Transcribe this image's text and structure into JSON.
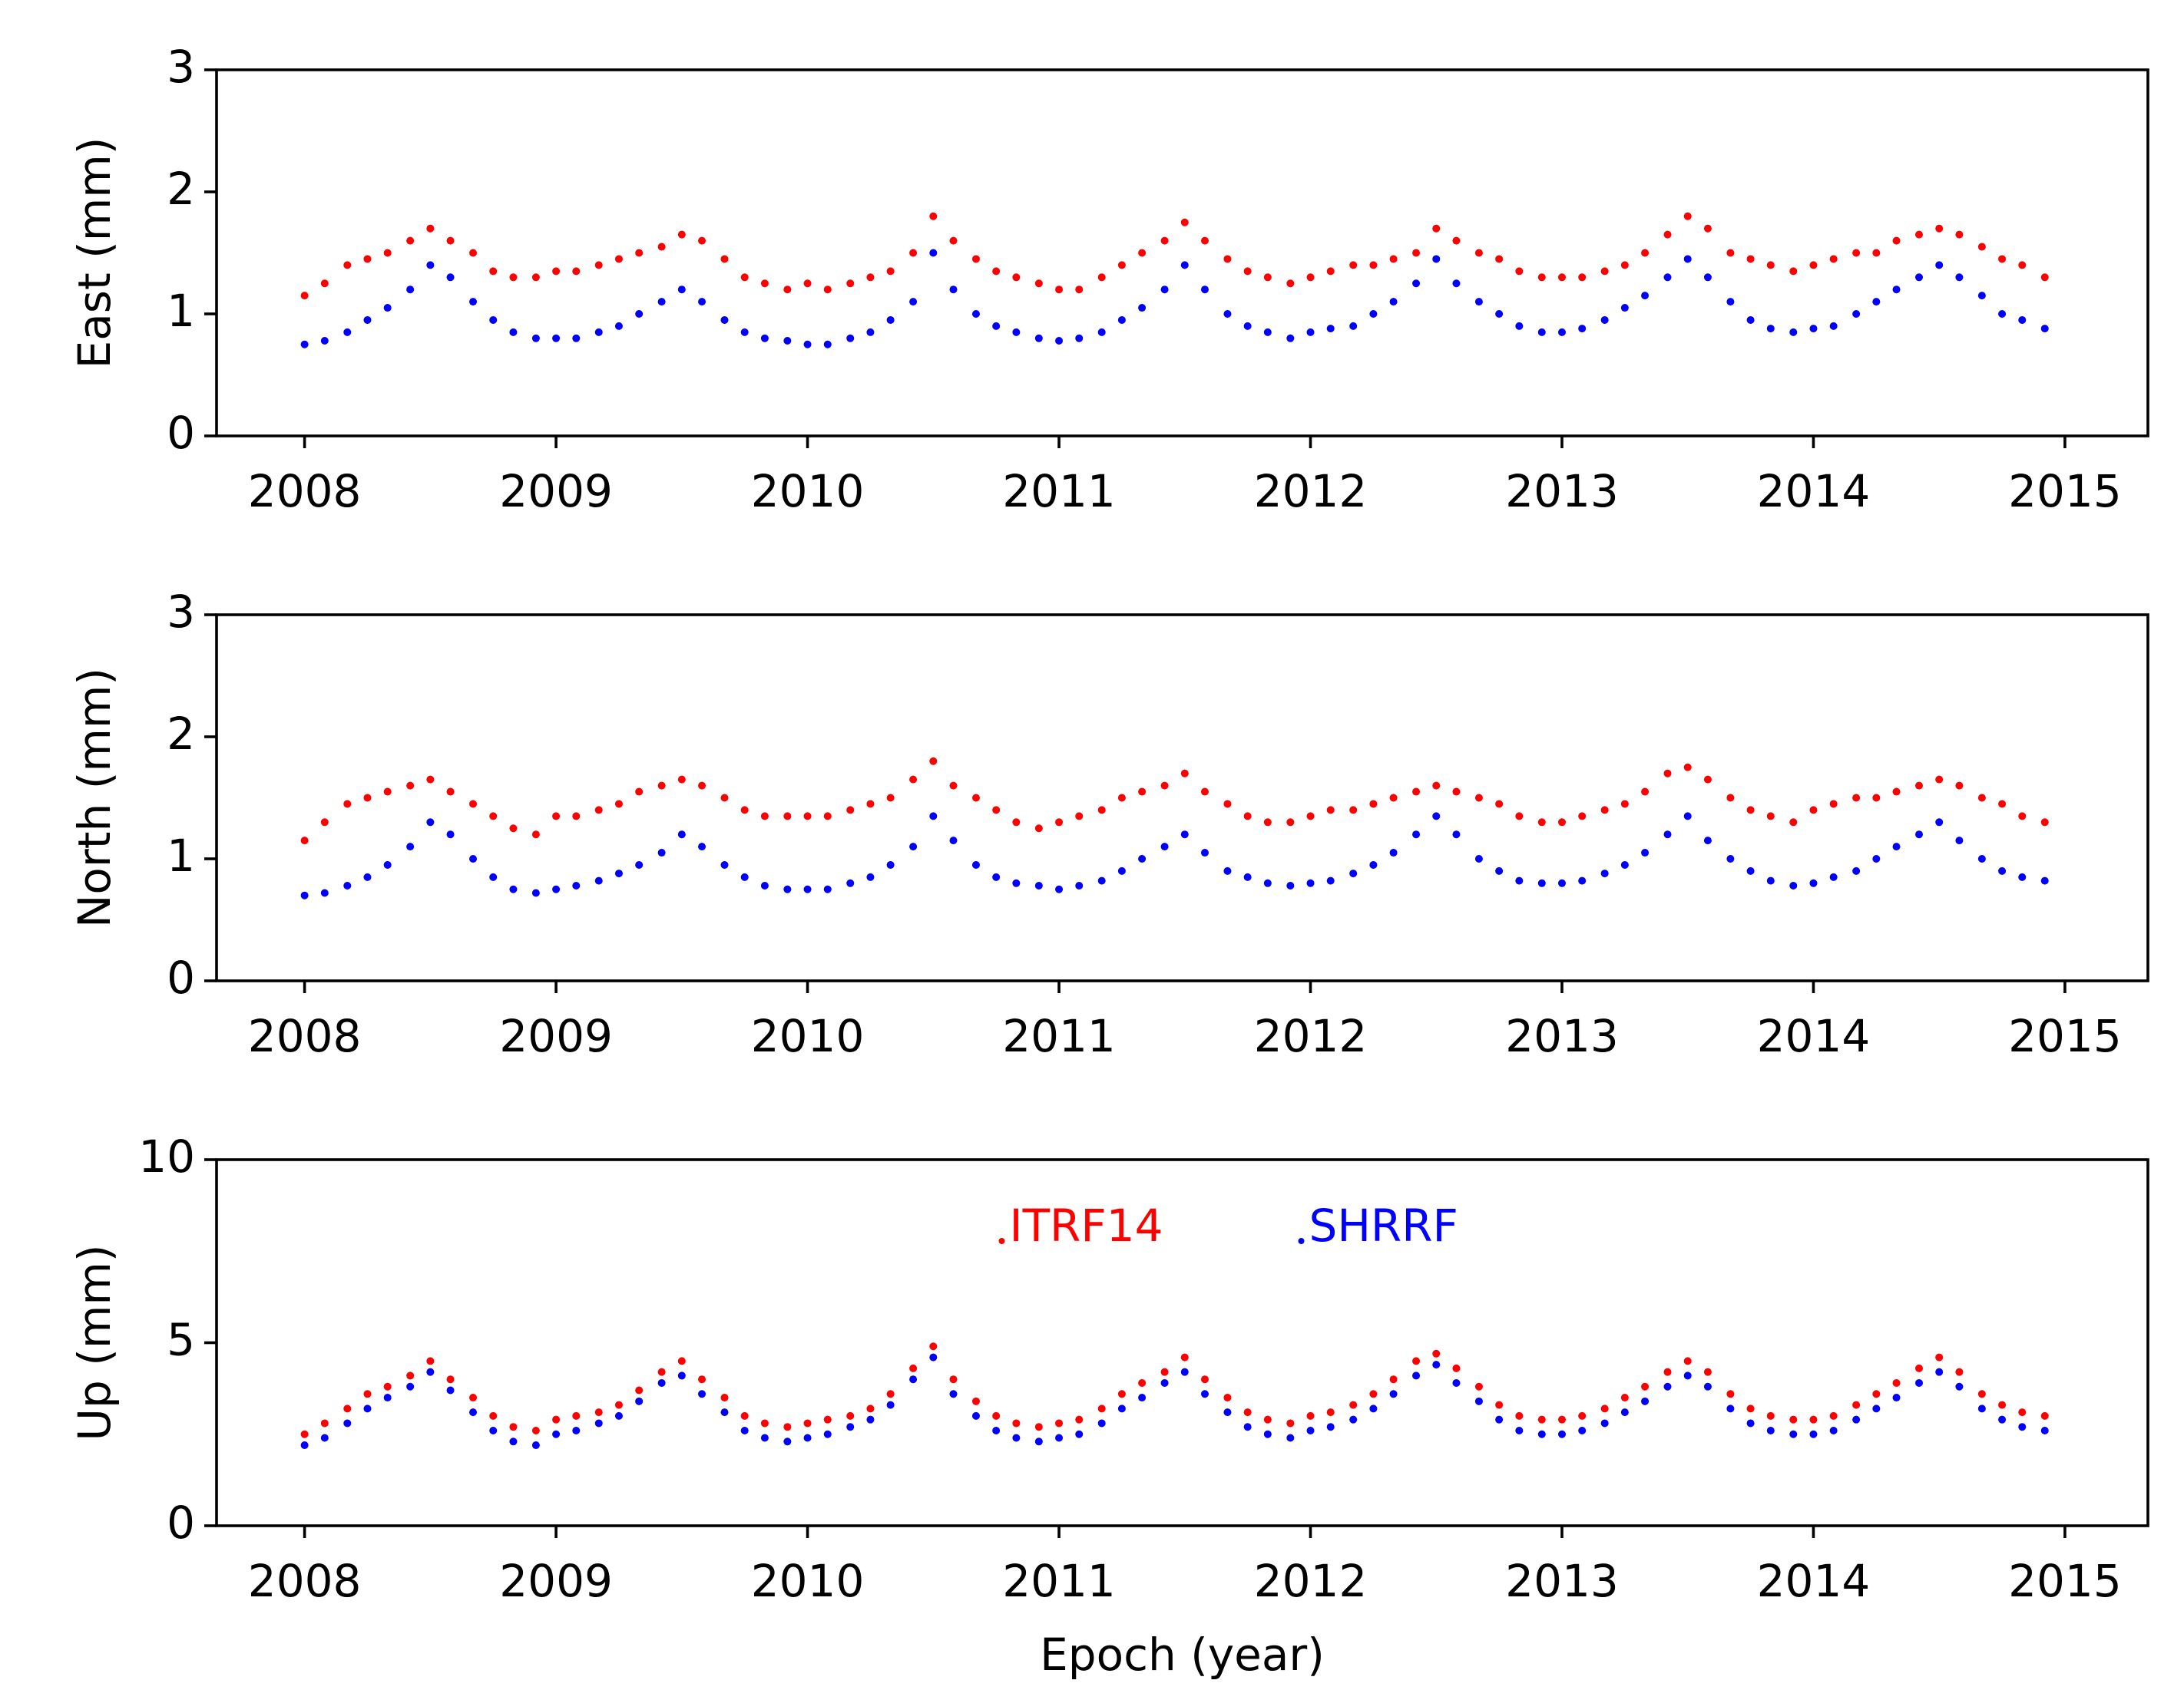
{
  "chart_data": [
    {
      "type": "scatter",
      "y_label": "East (mm)",
      "xlim": [
        2007.65,
        2015.33
      ],
      "xticks": [
        2008,
        2009,
        2010,
        2011,
        2012,
        2013,
        2014,
        2015
      ],
      "ylim": [
        0,
        3
      ],
      "yticks": [
        0,
        1,
        2,
        3
      ],
      "x": [
        2008.0,
        2008.08,
        2008.17,
        2008.25,
        2008.33,
        2008.42,
        2008.5,
        2008.58,
        2008.67,
        2008.75,
        2008.83,
        2008.92,
        2009.0,
        2009.08,
        2009.17,
        2009.25,
        2009.33,
        2009.42,
        2009.5,
        2009.58,
        2009.67,
        2009.75,
        2009.83,
        2009.92,
        2010.0,
        2010.08,
        2010.17,
        2010.25,
        2010.33,
        2010.42,
        2010.5,
        2010.58,
        2010.67,
        2010.75,
        2010.83,
        2010.92,
        2011.0,
        2011.08,
        2011.17,
        2011.25,
        2011.33,
        2011.42,
        2011.5,
        2011.58,
        2011.67,
        2011.75,
        2011.83,
        2011.92,
        2012.0,
        2012.08,
        2012.17,
        2012.25,
        2012.33,
        2012.42,
        2012.5,
        2012.58,
        2012.67,
        2012.75,
        2012.83,
        2012.92,
        2013.0,
        2013.08,
        2013.17,
        2013.25,
        2013.33,
        2013.42,
        2013.5,
        2013.58,
        2013.67,
        2013.75,
        2013.83,
        2013.92,
        2014.0,
        2014.08,
        2014.17,
        2014.25,
        2014.33,
        2014.42,
        2014.5,
        2014.58,
        2014.67,
        2014.75,
        2014.83,
        2014.92
      ],
      "series": [
        {
          "name": "ITRF14",
          "color": "#ff0000",
          "values": [
            1.15,
            1.25,
            1.4,
            1.45,
            1.5,
            1.6,
            1.7,
            1.6,
            1.5,
            1.35,
            1.3,
            1.3,
            1.35,
            1.35,
            1.4,
            1.45,
            1.5,
            1.55,
            1.65,
            1.6,
            1.45,
            1.3,
            1.25,
            1.2,
            1.25,
            1.2,
            1.25,
            1.3,
            1.35,
            1.5,
            1.8,
            1.6,
            1.45,
            1.35,
            1.3,
            1.25,
            1.2,
            1.2,
            1.3,
            1.4,
            1.5,
            1.6,
            1.75,
            1.6,
            1.45,
            1.35,
            1.3,
            1.25,
            1.3,
            1.35,
            1.4,
            1.4,
            1.45,
            1.5,
            1.7,
            1.6,
            1.5,
            1.45,
            1.35,
            1.3,
            1.3,
            1.3,
            1.35,
            1.4,
            1.5,
            1.65,
            1.8,
            1.7,
            1.5,
            1.45,
            1.4,
            1.35,
            1.4,
            1.45,
            1.5,
            1.5,
            1.6,
            1.65,
            1.7,
            1.65,
            1.55,
            1.45,
            1.4,
            1.3
          ]
        },
        {
          "name": "SHRRF",
          "color": "#0000ff",
          "values": [
            0.75,
            0.78,
            0.85,
            0.95,
            1.05,
            1.2,
            1.4,
            1.3,
            1.1,
            0.95,
            0.85,
            0.8,
            0.8,
            0.8,
            0.85,
            0.9,
            1.0,
            1.1,
            1.2,
            1.1,
            0.95,
            0.85,
            0.8,
            0.78,
            0.75,
            0.75,
            0.8,
            0.85,
            0.95,
            1.1,
            1.5,
            1.2,
            1.0,
            0.9,
            0.85,
            0.8,
            0.78,
            0.8,
            0.85,
            0.95,
            1.05,
            1.2,
            1.4,
            1.2,
            1.0,
            0.9,
            0.85,
            0.8,
            0.85,
            0.88,
            0.9,
            1.0,
            1.1,
            1.25,
            1.45,
            1.25,
            1.1,
            1.0,
            0.9,
            0.85,
            0.85,
            0.88,
            0.95,
            1.05,
            1.15,
            1.3,
            1.45,
            1.3,
            1.1,
            0.95,
            0.88,
            0.85,
            0.88,
            0.9,
            1.0,
            1.1,
            1.2,
            1.3,
            1.4,
            1.3,
            1.15,
            1.0,
            0.95,
            0.88
          ]
        }
      ]
    },
    {
      "type": "scatter",
      "y_label": "North (mm)",
      "xlim": [
        2007.65,
        2015.33
      ],
      "xticks": [
        2008,
        2009,
        2010,
        2011,
        2012,
        2013,
        2014,
        2015
      ],
      "ylim": [
        0,
        3
      ],
      "yticks": [
        0,
        1,
        2,
        3
      ],
      "x": [
        2008.0,
        2008.08,
        2008.17,
        2008.25,
        2008.33,
        2008.42,
        2008.5,
        2008.58,
        2008.67,
        2008.75,
        2008.83,
        2008.92,
        2009.0,
        2009.08,
        2009.17,
        2009.25,
        2009.33,
        2009.42,
        2009.5,
        2009.58,
        2009.67,
        2009.75,
        2009.83,
        2009.92,
        2010.0,
        2010.08,
        2010.17,
        2010.25,
        2010.33,
        2010.42,
        2010.5,
        2010.58,
        2010.67,
        2010.75,
        2010.83,
        2010.92,
        2011.0,
        2011.08,
        2011.17,
        2011.25,
        2011.33,
        2011.42,
        2011.5,
        2011.58,
        2011.67,
        2011.75,
        2011.83,
        2011.92,
        2012.0,
        2012.08,
        2012.17,
        2012.25,
        2012.33,
        2012.42,
        2012.5,
        2012.58,
        2012.67,
        2012.75,
        2012.83,
        2012.92,
        2013.0,
        2013.08,
        2013.17,
        2013.25,
        2013.33,
        2013.42,
        2013.5,
        2013.58,
        2013.67,
        2013.75,
        2013.83,
        2013.92,
        2014.0,
        2014.08,
        2014.17,
        2014.25,
        2014.33,
        2014.42,
        2014.5,
        2014.58,
        2014.67,
        2014.75,
        2014.83,
        2014.92
      ],
      "series": [
        {
          "name": "ITRF14",
          "color": "#ff0000",
          "values": [
            1.15,
            1.3,
            1.45,
            1.5,
            1.55,
            1.6,
            1.65,
            1.55,
            1.45,
            1.35,
            1.25,
            1.2,
            1.35,
            1.35,
            1.4,
            1.45,
            1.55,
            1.6,
            1.65,
            1.6,
            1.5,
            1.4,
            1.35,
            1.35,
            1.35,
            1.35,
            1.4,
            1.45,
            1.5,
            1.65,
            1.8,
            1.6,
            1.5,
            1.4,
            1.3,
            1.25,
            1.3,
            1.35,
            1.4,
            1.5,
            1.55,
            1.6,
            1.7,
            1.55,
            1.45,
            1.35,
            1.3,
            1.3,
            1.35,
            1.4,
            1.4,
            1.45,
            1.5,
            1.55,
            1.6,
            1.55,
            1.5,
            1.45,
            1.35,
            1.3,
            1.3,
            1.35,
            1.4,
            1.45,
            1.55,
            1.7,
            1.75,
            1.65,
            1.5,
            1.4,
            1.35,
            1.3,
            1.4,
            1.45,
            1.5,
            1.5,
            1.55,
            1.6,
            1.65,
            1.6,
            1.5,
            1.45,
            1.35,
            1.3
          ]
        },
        {
          "name": "SHRRF",
          "color": "#0000ff",
          "values": [
            0.7,
            0.72,
            0.78,
            0.85,
            0.95,
            1.1,
            1.3,
            1.2,
            1.0,
            0.85,
            0.75,
            0.72,
            0.75,
            0.78,
            0.82,
            0.88,
            0.95,
            1.05,
            1.2,
            1.1,
            0.95,
            0.85,
            0.78,
            0.75,
            0.75,
            0.75,
            0.8,
            0.85,
            0.95,
            1.1,
            1.35,
            1.15,
            0.95,
            0.85,
            0.8,
            0.78,
            0.75,
            0.78,
            0.82,
            0.9,
            1.0,
            1.1,
            1.2,
            1.05,
            0.9,
            0.85,
            0.8,
            0.78,
            0.8,
            0.82,
            0.88,
            0.95,
            1.05,
            1.2,
            1.35,
            1.2,
            1.0,
            0.9,
            0.82,
            0.8,
            0.8,
            0.82,
            0.88,
            0.95,
            1.05,
            1.2,
            1.35,
            1.15,
            1.0,
            0.9,
            0.82,
            0.78,
            0.8,
            0.85,
            0.9,
            1.0,
            1.1,
            1.2,
            1.3,
            1.15,
            1.0,
            0.9,
            0.85,
            0.82
          ]
        }
      ]
    },
    {
      "type": "scatter",
      "y_label": "Up (mm)",
      "x_label": "Epoch (year)",
      "legend": "upper center",
      "xlim": [
        2007.65,
        2015.33
      ],
      "xticks": [
        2008,
        2009,
        2010,
        2011,
        2012,
        2013,
        2014,
        2015
      ],
      "ylim": [
        0,
        10
      ],
      "yticks": [
        0,
        5,
        10
      ],
      "x": [
        2008.0,
        2008.08,
        2008.17,
        2008.25,
        2008.33,
        2008.42,
        2008.5,
        2008.58,
        2008.67,
        2008.75,
        2008.83,
        2008.92,
        2009.0,
        2009.08,
        2009.17,
        2009.25,
        2009.33,
        2009.42,
        2009.5,
        2009.58,
        2009.67,
        2009.75,
        2009.83,
        2009.92,
        2010.0,
        2010.08,
        2010.17,
        2010.25,
        2010.33,
        2010.42,
        2010.5,
        2010.58,
        2010.67,
        2010.75,
        2010.83,
        2010.92,
        2011.0,
        2011.08,
        2011.17,
        2011.25,
        2011.33,
        2011.42,
        2011.5,
        2011.58,
        2011.67,
        2011.75,
        2011.83,
        2011.92,
        2012.0,
        2012.08,
        2012.17,
        2012.25,
        2012.33,
        2012.42,
        2012.5,
        2012.58,
        2012.67,
        2012.75,
        2012.83,
        2012.92,
        2013.0,
        2013.08,
        2013.17,
        2013.25,
        2013.33,
        2013.42,
        2013.5,
        2013.58,
        2013.67,
        2013.75,
        2013.83,
        2013.92,
        2014.0,
        2014.08,
        2014.17,
        2014.25,
        2014.33,
        2014.42,
        2014.5,
        2014.58,
        2014.67,
        2014.75,
        2014.83,
        2014.92
      ],
      "series": [
        {
          "name": "ITRF14",
          "color": "#ff0000",
          "values": [
            2.5,
            2.8,
            3.2,
            3.6,
            3.8,
            4.1,
            4.5,
            4.0,
            3.5,
            3.0,
            2.7,
            2.6,
            2.9,
            3.0,
            3.1,
            3.3,
            3.7,
            4.2,
            4.5,
            4.0,
            3.5,
            3.0,
            2.8,
            2.7,
            2.8,
            2.9,
            3.0,
            3.2,
            3.6,
            4.3,
            4.9,
            4.0,
            3.4,
            3.0,
            2.8,
            2.7,
            2.8,
            2.9,
            3.2,
            3.6,
            3.9,
            4.2,
            4.6,
            4.0,
            3.5,
            3.1,
            2.9,
            2.8,
            3.0,
            3.1,
            3.3,
            3.6,
            4.0,
            4.5,
            4.7,
            4.3,
            3.8,
            3.3,
            3.0,
            2.9,
            2.9,
            3.0,
            3.2,
            3.5,
            3.8,
            4.2,
            4.5,
            4.2,
            3.6,
            3.2,
            3.0,
            2.9,
            2.9,
            3.0,
            3.3,
            3.6,
            3.9,
            4.3,
            4.6,
            4.2,
            3.6,
            3.3,
            3.1,
            3.0
          ]
        },
        {
          "name": "SHRRF",
          "color": "#0000ff",
          "values": [
            2.2,
            2.4,
            2.8,
            3.2,
            3.5,
            3.8,
            4.2,
            3.7,
            3.1,
            2.6,
            2.3,
            2.2,
            2.5,
            2.6,
            2.8,
            3.0,
            3.4,
            3.9,
            4.1,
            3.6,
            3.1,
            2.6,
            2.4,
            2.3,
            2.4,
            2.5,
            2.7,
            2.9,
            3.3,
            4.0,
            4.6,
            3.6,
            3.0,
            2.6,
            2.4,
            2.3,
            2.4,
            2.5,
            2.8,
            3.2,
            3.5,
            3.9,
            4.2,
            3.6,
            3.1,
            2.7,
            2.5,
            2.4,
            2.6,
            2.7,
            2.9,
            3.2,
            3.6,
            4.1,
            4.4,
            3.9,
            3.4,
            2.9,
            2.6,
            2.5,
            2.5,
            2.6,
            2.8,
            3.1,
            3.4,
            3.8,
            4.1,
            3.8,
            3.2,
            2.8,
            2.6,
            2.5,
            2.5,
            2.6,
            2.9,
            3.2,
            3.5,
            3.9,
            4.2,
            3.8,
            3.2,
            2.9,
            2.7,
            2.6
          ]
        }
      ]
    }
  ]
}
